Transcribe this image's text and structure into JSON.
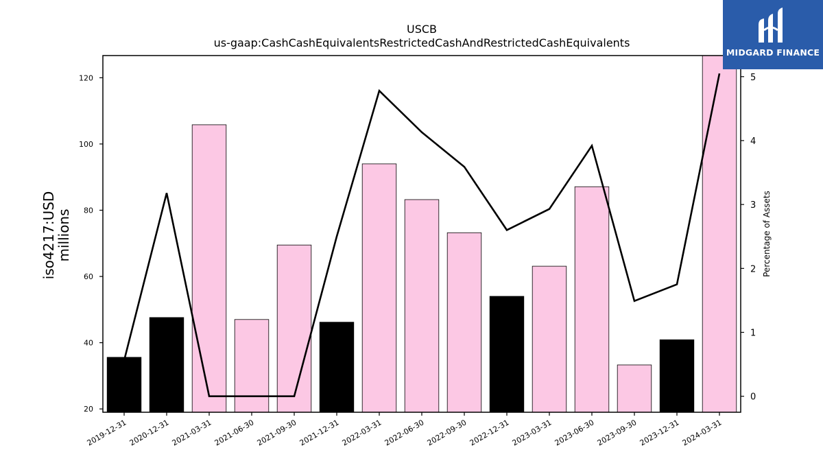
{
  "logo": {
    "text": "MIDGARD FINANCE",
    "icon": "midgard-logo-icon",
    "bg_color": "#2a5caa"
  },
  "chart_data": {
    "type": "bar",
    "title": "USCB",
    "subtitle": "us-gaap:CashCashEquivalentsRestrictedCashAndRestrictedCashEquivalents",
    "ylabel_lines": [
      "iso4217:USD",
      "millions"
    ],
    "y2label": "Percentage of Assets",
    "categories": [
      "2019-12-31",
      "2020-12-31",
      "2021-03-31",
      "2021-06-30",
      "2021-09-30",
      "2021-12-31",
      "2022-03-31",
      "2022-06-30",
      "2022-09-30",
      "2022-12-31",
      "2023-03-31",
      "2023-06-30",
      "2023-09-30",
      "2023-12-31",
      "2024-03-31"
    ],
    "series": [
      {
        "type": "bar",
        "values": [
          35.6,
          47.6,
          105.8,
          47.0,
          69.5,
          46.2,
          94.0,
          83.2,
          73.2,
          54.0,
          63.1,
          87.1,
          33.3,
          40.9,
          126.7
        ],
        "colors": [
          "#000000",
          "#000000",
          "#fcc8e4",
          "#fcc8e4",
          "#fcc8e4",
          "#000000",
          "#fcc8e4",
          "#fcc8e4",
          "#fcc8e4",
          "#000000",
          "#fcc8e4",
          "#fcc8e4",
          "#fcc8e4",
          "#000000",
          "#fcc8e4"
        ]
      },
      {
        "type": "line",
        "axis": "right",
        "color": "#000000",
        "values": [
          0.56,
          3.18,
          0.0,
          0.0,
          0.0,
          2.5,
          4.78,
          4.13,
          3.59,
          2.6,
          2.93,
          3.92,
          1.49,
          1.75,
          5.05
        ]
      }
    ],
    "ylim": [
      19,
      126.7
    ],
    "yticks": [
      20,
      40,
      60,
      80,
      100,
      120
    ],
    "y2lim": [
      -0.25,
      5.33
    ],
    "y2ticks": [
      0,
      1,
      2,
      3,
      4,
      5
    ],
    "grid": false
  }
}
